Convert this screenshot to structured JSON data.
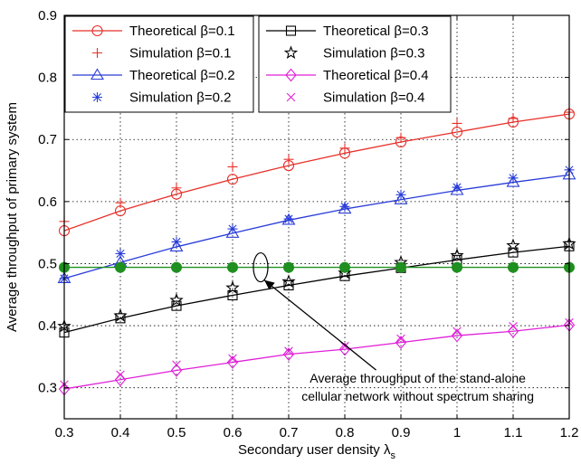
{
  "chart_data": {
    "type": "line",
    "xlabel": "Secondary user density λ",
    "xlabel_subscript": "s",
    "ylabel": "Average throughput of primary system",
    "xlim": [
      0.3,
      1.2
    ],
    "ylim": [
      0.25,
      0.9
    ],
    "xticks": [
      "0.3",
      "0.4",
      "0.5",
      "0.6",
      "0.7",
      "0.8",
      "0.9",
      "1",
      "1.1",
      "1.2"
    ],
    "yticks": [
      "0.3",
      "0.4",
      "0.5",
      "0.6",
      "0.7",
      "0.8",
      "0.9"
    ],
    "grid": true,
    "x": [
      0.3,
      0.4,
      0.5,
      0.6,
      0.7,
      0.8,
      0.9,
      1.0,
      1.1,
      1.2
    ],
    "series": [
      {
        "name": "Theoretical β=0.1",
        "color": "#e8302a",
        "style": "line",
        "marker": "circle",
        "values": [
          0.553,
          0.585,
          0.612,
          0.636,
          0.658,
          0.678,
          0.696,
          0.712,
          0.728,
          0.741
        ]
      },
      {
        "name": "Simulation β=0.1",
        "color": "#e8302a",
        "style": "marker",
        "marker": "plus",
        "values": [
          0.568,
          0.598,
          0.622,
          0.656,
          0.668,
          0.686,
          0.703,
          0.726,
          0.734,
          0.744
        ]
      },
      {
        "name": "Theoretical β=0.2",
        "color": "#2a3dd8",
        "style": "line",
        "marker": "triangle",
        "values": [
          0.476,
          0.502,
          0.527,
          0.549,
          0.57,
          0.588,
          0.603,
          0.618,
          0.631,
          0.643
        ]
      },
      {
        "name": "Simulation β=0.2",
        "color": "#2a3dd8",
        "style": "marker",
        "marker": "asterisk",
        "values": [
          0.476,
          0.516,
          0.535,
          0.556,
          0.572,
          0.592,
          0.611,
          0.623,
          0.638,
          0.651
        ]
      },
      {
        "name": "Theoretical β=0.3",
        "color": "#000000",
        "style": "line",
        "marker": "square",
        "values": [
          0.389,
          0.412,
          0.432,
          0.449,
          0.465,
          0.48,
          0.493,
          0.506,
          0.518,
          0.528
        ]
      },
      {
        "name": "Simulation β=0.3",
        "color": "#000000",
        "style": "marker",
        "marker": "star",
        "values": [
          0.399,
          0.416,
          0.441,
          0.461,
          0.471,
          0.485,
          0.502,
          0.513,
          0.529,
          0.532
        ]
      },
      {
        "name": "Theoretical β=0.4",
        "color": "#e020d8",
        "style": "line",
        "marker": "diamond",
        "values": [
          0.298,
          0.313,
          0.328,
          0.341,
          0.354,
          0.362,
          0.373,
          0.384,
          0.391,
          0.401
        ]
      },
      {
        "name": "Simulation β=0.4",
        "color": "#e020d8",
        "style": "marker",
        "marker": "x",
        "values": [
          0.305,
          0.321,
          0.337,
          0.347,
          0.359,
          0.367,
          0.379,
          0.391,
          0.399,
          0.405
        ]
      },
      {
        "name": "",
        "color": "#1f8f1f",
        "style": "line",
        "marker": "dot",
        "values": [
          0.494,
          0.494,
          0.494,
          0.494,
          0.494,
          0.494,
          0.494,
          0.494,
          0.494,
          0.494
        ]
      }
    ],
    "legend_left": [
      "Theoretical β=0.1",
      "Simulation β=0.1",
      "Theoretical β=0.2",
      "Simulation β=0.2"
    ],
    "legend_right": [
      "Theoretical β=0.3",
      "Simulation β=0.3",
      "Theoretical β=0.4",
      "Simulation β=0.4"
    ],
    "legend_placement": "top",
    "annotation": {
      "line1": "Average throughput of the stand-alone",
      "line2": "cellular network without spectrum sharing",
      "ellipse_x": 0.65,
      "ellipse_y": 0.494,
      "text_x": 0.93,
      "text_y": 0.314
    }
  }
}
